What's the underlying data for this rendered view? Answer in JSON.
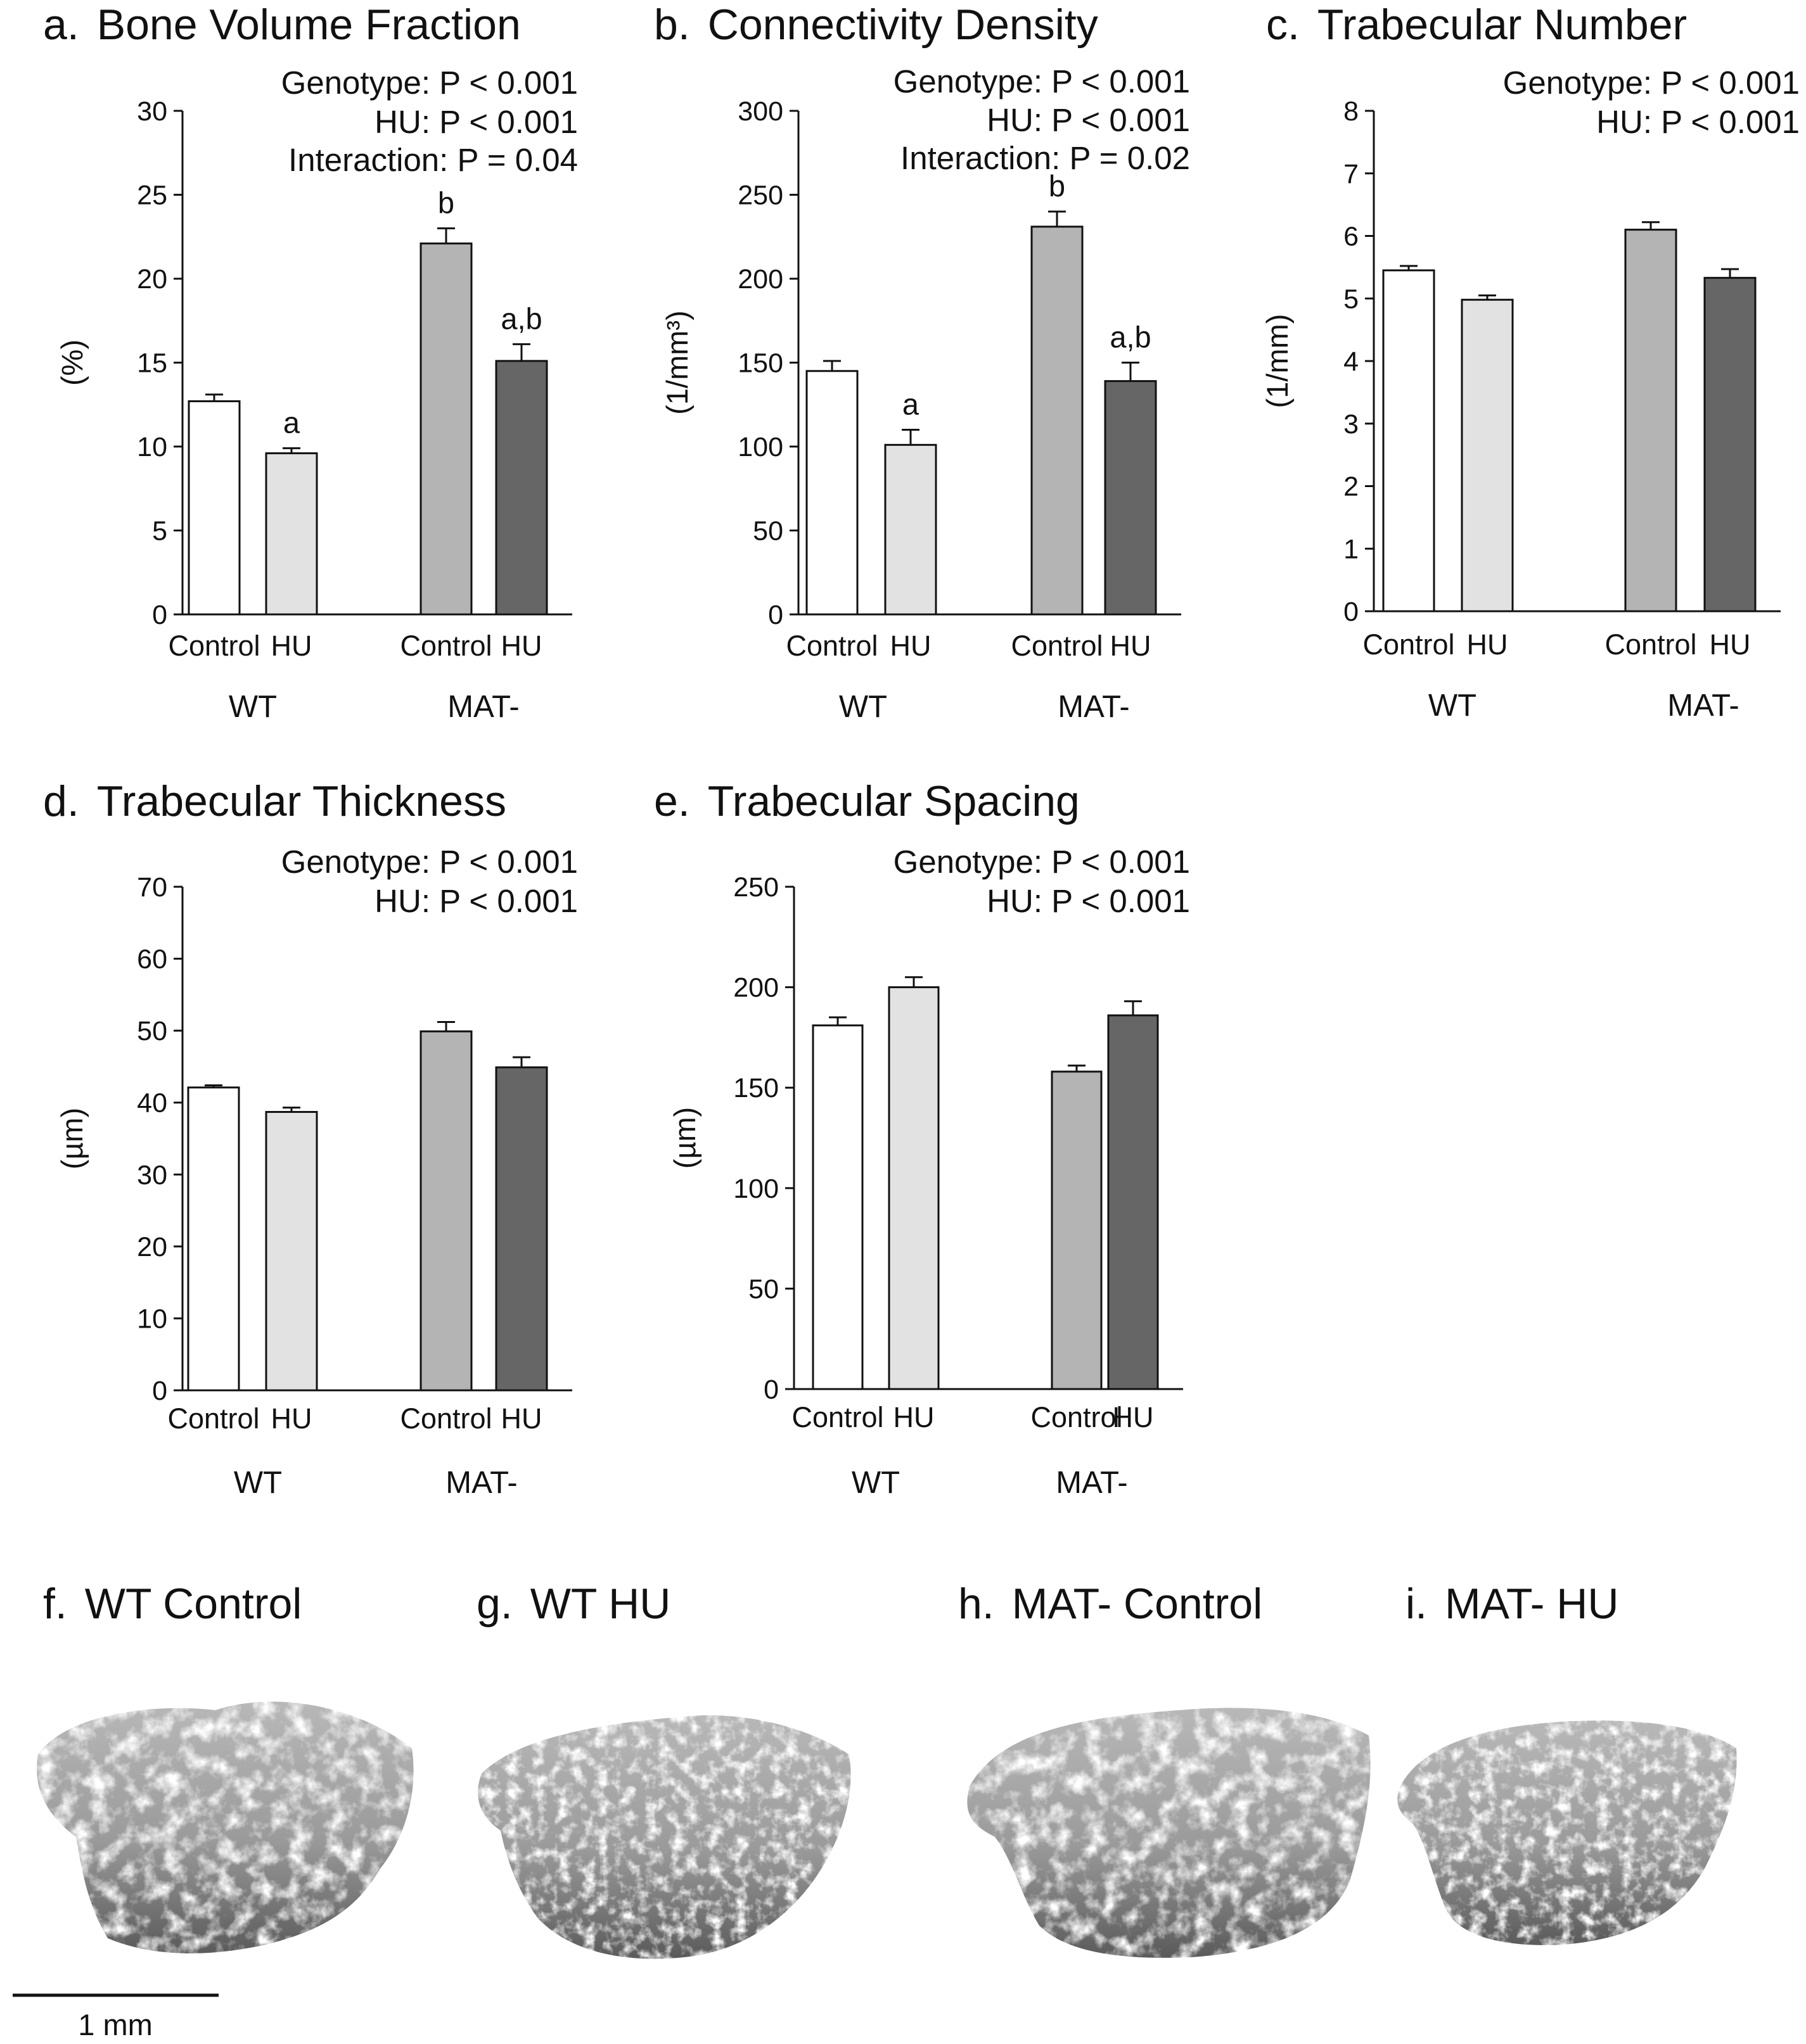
{
  "chart_data": [
    {
      "type": "bar",
      "panel": "a.",
      "title": "Bone Volume Fraction",
      "ylabel": "(%)",
      "ylim": [
        0,
        30
      ],
      "yticks": [
        "0",
        "5",
        "10",
        "15",
        "20",
        "25",
        "30"
      ],
      "categories": [
        "Control",
        "HU",
        "Control",
        "HU"
      ],
      "groups": [
        "WT",
        "MAT-"
      ],
      "values": [
        12.7,
        9.6,
        22.1,
        15.1
      ],
      "errors": [
        0.4,
        0.3,
        0.9,
        1.0
      ],
      "significance": [
        "",
        "a",
        "b",
        "a,b"
      ],
      "stats": [
        "Genotype:  P < 0.001",
        "HU:  P < 0.001",
        "Interaction:  P = 0.04"
      ]
    },
    {
      "type": "bar",
      "panel": "b.",
      "title": "Connectivity Density",
      "ylabel": "(1/mm³)",
      "ylim": [
        0,
        300
      ],
      "yticks": [
        "0",
        "50",
        "100",
        "150",
        "200",
        "250",
        "300"
      ],
      "categories": [
        "Control",
        "HU",
        "Control",
        "HU"
      ],
      "groups": [
        "WT",
        "MAT-"
      ],
      "values": [
        145,
        101,
        231,
        139
      ],
      "errors": [
        6,
        9,
        9,
        11
      ],
      "significance": [
        "",
        "a",
        "b",
        "a,b"
      ],
      "stats": [
        "Genotype:  P < 0.001",
        "HU:  P < 0.001",
        "Interaction:  P = 0.02"
      ]
    },
    {
      "type": "bar",
      "panel": "c.",
      "title": "Trabecular Number",
      "ylabel": "(1/mm)",
      "ylim": [
        0,
        8
      ],
      "yticks": [
        "0",
        "1",
        "2",
        "3",
        "4",
        "5",
        "6",
        "7",
        "8"
      ],
      "categories": [
        "Control",
        "HU",
        "Control",
        "HU"
      ],
      "groups": [
        "WT",
        "MAT-"
      ],
      "values": [
        5.45,
        4.98,
        6.1,
        5.33
      ],
      "errors": [
        0.07,
        0.07,
        0.12,
        0.14
      ],
      "significance": [
        "",
        "",
        "",
        ""
      ],
      "stats": [
        "Genotype:  P < 0.001",
        "HU:  P < 0.001"
      ]
    },
    {
      "type": "bar",
      "panel": "d.",
      "title": "Trabecular Thickness",
      "ylabel": "(µm)",
      "ylim": [
        0,
        70
      ],
      "yticks": [
        "0",
        "10",
        "20",
        "30",
        "40",
        "50",
        "60",
        "70"
      ],
      "categories": [
        "Control",
        "HU",
        "Control",
        "HU"
      ],
      "groups": [
        "WT",
        "MAT-"
      ],
      "values": [
        42.1,
        38.7,
        49.9,
        44.9
      ],
      "errors": [
        0.3,
        0.6,
        1.3,
        1.4
      ],
      "significance": [
        "",
        "",
        "",
        ""
      ],
      "stats": [
        "Genotype:  P < 0.001",
        "HU:  P < 0.001"
      ]
    },
    {
      "type": "bar",
      "panel": "e.",
      "title": "Trabecular Spacing",
      "ylabel": "(µm)",
      "ylim": [
        0,
        250
      ],
      "yticks": [
        "0",
        "50",
        "100",
        "150",
        "200",
        "250"
      ],
      "categories": [
        "Control",
        "HU",
        "Control",
        "HU"
      ],
      "groups": [
        "WT",
        "MAT-"
      ],
      "values": [
        181,
        200,
        158,
        186
      ],
      "errors": [
        4,
        5,
        3,
        7
      ],
      "significance": [
        "",
        "",
        "",
        ""
      ],
      "stats": [
        "Genotype:  P < 0.001",
        "HU:  P < 0.001"
      ]
    }
  ],
  "colors": {
    "bars": [
      "#ffffff",
      "#e2e2e2",
      "#b4b4b4",
      "#666666"
    ],
    "ink": "#111111",
    "bone_light": "#a8a8a8",
    "bone_dark": "#4a4a4a"
  },
  "images": {
    "f": {
      "label": "f.",
      "caption": "WT Control"
    },
    "g": {
      "label": "g.",
      "caption": "WT HU"
    },
    "h": {
      "label": "h.",
      "caption": "MAT- Control"
    },
    "i": {
      "label": "i.",
      "caption": "MAT- HU"
    }
  },
  "scale_bar": {
    "label": "1 mm"
  }
}
